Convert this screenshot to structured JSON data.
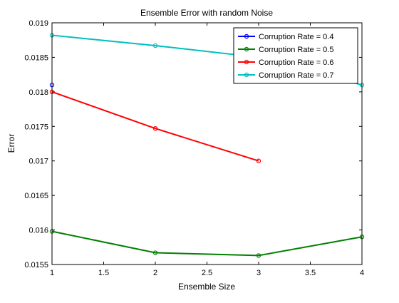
{
  "chart_data": {
    "type": "line",
    "title": "Ensemble Error with random Noise",
    "xlabel": "Ensemble Size",
    "ylabel": "Error",
    "xlim": [
      1,
      4
    ],
    "ylim": [
      0.0155,
      0.019
    ],
    "x_ticks": [
      "1",
      "1.5",
      "2",
      "2.5",
      "3",
      "3.5",
      "4"
    ],
    "y_ticks": [
      "0.0155",
      "0.016",
      "0.0165",
      "0.017",
      "0.0175",
      "0.018",
      "0.0185",
      "0.019"
    ],
    "grid": false,
    "legend_position": "top-right",
    "series": [
      {
        "name": "Corruption Rate = 0.4",
        "color": "#0000ff",
        "x": [
          1
        ],
        "y": [
          0.0181
        ]
      },
      {
        "name": "Corruption Rate = 0.5",
        "color": "#008000",
        "x": [
          1,
          2,
          3,
          4
        ],
        "y": [
          0.01598,
          0.01567,
          0.01563,
          0.0159
        ]
      },
      {
        "name": "Corruption Rate = 0.6",
        "color": "#ff0000",
        "x": [
          1,
          2,
          3
        ],
        "y": [
          0.018,
          0.01747,
          0.017
        ]
      },
      {
        "name": "Corruption Rate = 0.7",
        "color": "#00bfbf",
        "x": [
          1,
          2,
          3,
          4
        ],
        "y": [
          0.01882,
          0.01867,
          0.0185,
          0.0181
        ]
      }
    ]
  }
}
